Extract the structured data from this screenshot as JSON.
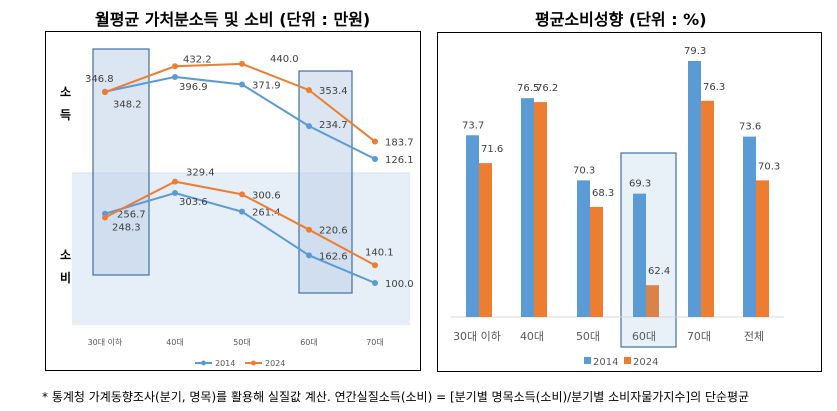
{
  "chart_data": [
    {
      "type": "line",
      "title": "월평균 가처분소득 및 소비 (단위 : 만원)",
      "categories": [
        "30대 이하",
        "40대",
        "50대",
        "60대",
        "70대"
      ],
      "panel_labels": {
        "income": "소\n득",
        "consumption": "소\n비"
      },
      "panel_label_income": [
        "소",
        "득"
      ],
      "panel_label_consumption": [
        "소",
        "비"
      ],
      "series": [
        {
          "name": "2014",
          "color": "#5B9BD5",
          "income": [
            348.2,
            396.9,
            371.9,
            234.7,
            126.1
          ],
          "consumption": [
            256.7,
            303.6,
            261.4,
            162.6,
            100.0
          ]
        },
        {
          "name": "2024",
          "color": "#ED7D31",
          "income": [
            346.8,
            432.2,
            440.0,
            353.4,
            183.7
          ],
          "consumption": [
            248.3,
            329.4,
            300.6,
            220.6,
            140.1
          ]
        }
      ],
      "highlighted_categories": [
        "30대 이하",
        "60대"
      ],
      "legend": "bottom",
      "grid": false
    },
    {
      "type": "bar",
      "title": "평균소비성향 (단위 : %)",
      "categories": [
        "30대 이하",
        "40대",
        "50대",
        "60대",
        "70대",
        "전체"
      ],
      "series": [
        {
          "name": "2014",
          "color": "#5B9BD5",
          "values": [
            73.7,
            76.5,
            70.3,
            69.3,
            79.3,
            73.6
          ]
        },
        {
          "name": "2024",
          "color": "#ED7D31",
          "values": [
            71.6,
            76.2,
            68.3,
            62.4,
            76.3,
            70.3
          ]
        }
      ],
      "ylim": [
        60,
        80
      ],
      "highlighted_categories": [
        "60대"
      ],
      "legend": "bottom",
      "grid": false
    }
  ],
  "footnote": "* 통계청 가계동향조사(분기, 명목)를 활용해 실질값 계산. 연간실질소득(소비) = [분기별 명목소득(소비)/분기별 소비자물가지수]의 단순평균"
}
